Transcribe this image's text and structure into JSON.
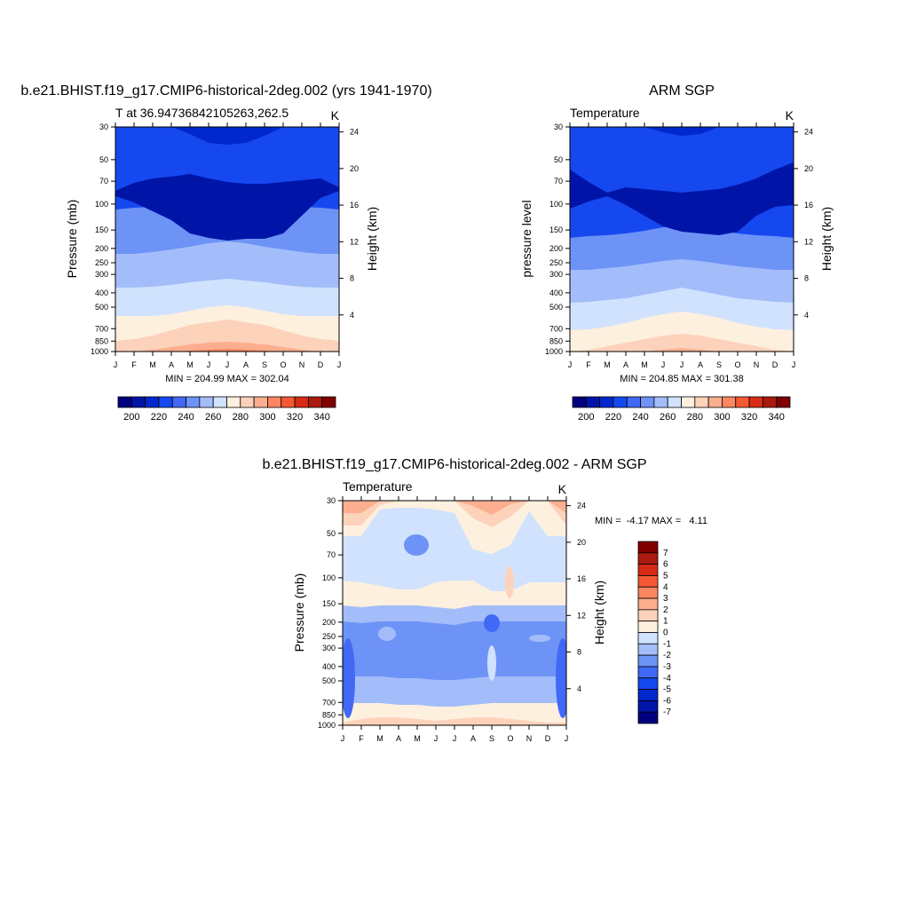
{
  "page": {
    "background": "#ffffff"
  },
  "palettes": {
    "temperature": [
      "#00007f",
      "#0015a8",
      "#0028cc",
      "#1648f0",
      "#4169f5",
      "#6e93f7",
      "#a3bdfb",
      "#d0e2fd",
      "#fef0de",
      "#fdd2bb",
      "#fdae8f",
      "#fb8660",
      "#f45934",
      "#d82b16",
      "#ab1a10",
      "#800000"
    ],
    "difference": [
      "#00007f",
      "#0015a8",
      "#0028cc",
      "#1648f0",
      "#4169f5",
      "#6e93f7",
      "#a3bdfb",
      "#d0e2fd",
      "#fef0de",
      "#fdd2bb",
      "#fdae8f",
      "#fb8660",
      "#f45934",
      "#d82b16",
      "#ab1a10",
      "#800000"
    ]
  },
  "chart_data": [
    {
      "id": "model",
      "type": "contour",
      "title": "b.e21.BHIST.f19_g17.CMIP6-historical-2deg.002 (yrs 1941-1970)",
      "left_string": "T at 36.94736842105263,262.5",
      "right_string": "K",
      "ylabel": "Pressure (mb)",
      "ylabel_right": "Height (km)",
      "xticks": [
        "J",
        "F",
        "M",
        "A",
        "M",
        "J",
        "J",
        "A",
        "S",
        "O",
        "N",
        "D",
        "J"
      ],
      "pressure_levels": [
        30,
        50,
        70,
        100,
        150,
        200,
        250,
        300,
        400,
        500,
        700,
        850,
        1000
      ],
      "height_ticks": [
        4,
        8,
        12,
        16,
        20,
        24
      ],
      "stats": "MIN = 204.99 MAX = 302.04",
      "colorbar": {
        "levels": [
          200,
          210,
          220,
          230,
          240,
          250,
          260,
          270,
          280,
          290,
          300,
          310,
          320,
          330,
          340
        ],
        "labels": [
          "200",
          "220",
          "240",
          "260",
          "280",
          "300",
          "320",
          "340"
        ]
      },
      "bands": [
        {
          "l": 8,
          "v": [
            40,
            40,
            40,
            42,
            46,
            50,
            52,
            50,
            46,
            42,
            40,
            40,
            40
          ]
        },
        {
          "l": 9,
          "v": [
            12,
            14,
            18,
            24,
            30,
            33,
            36,
            33,
            30,
            24,
            18,
            14,
            12
          ]
        },
        {
          "l": 10,
          "v": [
            0,
            0,
            2,
            5,
            8,
            10,
            11,
            10,
            8,
            5,
            2,
            0,
            0
          ]
        },
        {
          "l": 11,
          "v": [
            0,
            0,
            0,
            0,
            1,
            2,
            3,
            2,
            1,
            0,
            0,
            0,
            0
          ]
        },
        {
          "l": 7,
          "v": [
            72,
            72,
            73,
            75,
            78,
            80,
            82,
            80,
            78,
            75,
            73,
            72,
            72
          ]
        },
        {
          "l": 6,
          "v": [
            110,
            110,
            112,
            115,
            118,
            122,
            124,
            122,
            118,
            115,
            112,
            110,
            110
          ]
        },
        {
          "l": 5,
          "v": [
            160,
            162,
            163,
            166,
            170,
            173,
            175,
            173,
            170,
            166,
            163,
            162,
            160
          ]
        }
      ],
      "dark_region": {
        "l": 1,
        "top": [
          72,
          63,
          58,
          56,
          53,
          58,
          62,
          64,
          64,
          62,
          60,
          58,
          68
        ],
        "bot": [
          78,
          85,
          95,
          105,
          120,
          125,
          128,
          126,
          126,
          120,
          100,
          80,
          72
        ]
      },
      "upper_region": {
        "l": 2,
        "top": [
          0,
          0,
          0,
          0,
          0,
          0,
          0,
          0,
          0,
          0,
          0,
          0,
          0
        ],
        "bot": [
          0,
          0,
          0,
          0,
          8,
          18,
          20,
          18,
          10,
          0,
          0,
          0,
          0
        ]
      }
    },
    {
      "id": "obs",
      "type": "contour",
      "title": "ARM SGP",
      "left_string": "Temperature",
      "right_string": "K",
      "ylabel": "pressure level",
      "ylabel_right": "Height (km)",
      "xticks": [
        "J",
        "F",
        "M",
        "A",
        "M",
        "J",
        "J",
        "A",
        "S",
        "O",
        "N",
        "D",
        "J"
      ],
      "pressure_levels": [
        30,
        50,
        70,
        100,
        150,
        200,
        250,
        300,
        400,
        500,
        700,
        850,
        1000
      ],
      "height_ticks": [
        4,
        8,
        12,
        16,
        20,
        24
      ],
      "stats": "MIN = 204.85 MAX = 301.38",
      "colorbar": {
        "levels": [
          200,
          210,
          220,
          230,
          240,
          250,
          260,
          270,
          280,
          290,
          300,
          310,
          320,
          330,
          340
        ],
        "labels": [
          "200",
          "220",
          "240",
          "260",
          "280",
          "300",
          "320",
          "340"
        ]
      },
      "bands": [
        {
          "l": 8,
          "v": [
            24,
            25,
            28,
            32,
            38,
            42,
            45,
            42,
            38,
            32,
            28,
            25,
            24
          ]
        },
        {
          "l": 9,
          "v": [
            0,
            2,
            6,
            10,
            14,
            18,
            20,
            18,
            14,
            10,
            6,
            2,
            0
          ]
        },
        {
          "l": 10,
          "v": [
            0,
            0,
            0,
            0,
            0,
            2,
            4,
            2,
            0,
            0,
            0,
            0,
            0
          ]
        },
        {
          "l": 7,
          "v": [
            55,
            56,
            58,
            60,
            64,
            68,
            72,
            68,
            64,
            60,
            58,
            56,
            55
          ]
        },
        {
          "l": 6,
          "v": [
            92,
            92,
            94,
            96,
            99,
            102,
            104,
            102,
            99,
            96,
            94,
            92,
            92
          ]
        },
        {
          "l": 5,
          "v": [
            128,
            130,
            131,
            133,
            136,
            140,
            142,
            140,
            136,
            133,
            131,
            130,
            128
          ]
        }
      ],
      "dark_region": {
        "l": 1,
        "top": [
          48,
          62,
          74,
          68,
          70,
          72,
          74,
          72,
          70,
          65,
          58,
          48,
          40
        ],
        "bot": [
          92,
          84,
          78,
          88,
          100,
          112,
          118,
          120,
          122,
          118,
          100,
          90,
          88
        ]
      },
      "upper_region": {
        "l": 2,
        "top": [
          0,
          0,
          0,
          0,
          0,
          0,
          0,
          0,
          0,
          0,
          0,
          0,
          0
        ],
        "bot": [
          0,
          0,
          0,
          0,
          0,
          6,
          10,
          8,
          0,
          0,
          0,
          0,
          0
        ]
      }
    },
    {
      "id": "diff",
      "type": "contour",
      "title": "b.e21.BHIST.f19_g17.CMIP6-historical-2deg.002 - ARM SGP",
      "left_string": "Temperature",
      "right_string": "K",
      "ylabel": "Pressure (mb)",
      "ylabel_right": "Height (km)",
      "xticks": [
        "J",
        "F",
        "M",
        "A",
        "M",
        "J",
        "J",
        "A",
        "S",
        "O",
        "N",
        "D",
        "J"
      ],
      "pressure_levels": [
        30,
        50,
        70,
        100,
        150,
        200,
        250,
        300,
        400,
        500,
        700,
        850,
        1000
      ],
      "height_ticks": [
        4,
        8,
        12,
        16,
        20,
        24
      ],
      "stats": "MIN =  -4.17 MAX =   4.11",
      "colorbar": {
        "levels": [
          -7,
          -6,
          -5,
          -4,
          -3,
          -2,
          -1,
          0,
          1,
          2,
          3,
          4,
          5,
          6,
          7
        ],
        "labels": [
          "7",
          "6",
          "5",
          "4",
          "3",
          "2",
          "1",
          "0",
          "-1",
          "-2",
          "-3",
          "-4",
          "-5",
          "-6",
          "-7"
        ]
      },
      "top_layer": {
        "l": 9,
        "v": [
          28,
          28,
          5,
          0,
          0,
          0,
          0,
          20,
          30,
          18,
          0,
          0,
          28
        ]
      },
      "upper_blue": {
        "top": [
          40,
          40,
          10,
          8,
          8,
          10,
          14,
          55,
          60,
          50,
          12,
          40,
          40
        ],
        "bot": [
          90,
          92,
          96,
          100,
          100,
          92,
          90,
          90,
          102,
          102,
          92,
          92,
          92
        ]
      },
      "mid_blue": {
        "top": [
          118,
          120,
          118,
          118,
          118,
          120,
          122,
          118,
          118,
          118,
          118,
          118,
          118
        ],
        "bot": [
          228,
          228,
          228,
          230,
          230,
          232,
          232,
          230,
          228,
          228,
          228,
          228,
          228
        ]
      },
      "spots": [
        {
          "l": 5,
          "x": 83,
          "y": 50,
          "rx": 14,
          "ry": 12
        },
        {
          "l": 4,
          "x": 168,
          "y": 138,
          "rx": 9,
          "ry": 10
        },
        {
          "l": 6,
          "x": 50,
          "y": 150,
          "rx": 10,
          "ry": 8
        },
        {
          "l": 6,
          "x": 222,
          "y": 155,
          "rx": 12,
          "ry": 4
        },
        {
          "l": 7,
          "x": 168,
          "y": 183,
          "rx": 5,
          "ry": 20
        },
        {
          "l": 9,
          "x": 188,
          "y": 92,
          "rx": 5,
          "ry": 18
        }
      ],
      "side_blue": [
        {
          "l": 4,
          "x": 6,
          "y": 200,
          "rx": 8,
          "ry": 45
        },
        {
          "l": 4,
          "x": 248,
          "y": 200,
          "rx": 8,
          "ry": 45
        }
      ],
      "bottom_warm": {
        "l": 9,
        "top": [
          250,
          246,
          244,
          244,
          246,
          248,
          246,
          244,
          244,
          246,
          248,
          250,
          250
        ]
      }
    }
  ]
}
